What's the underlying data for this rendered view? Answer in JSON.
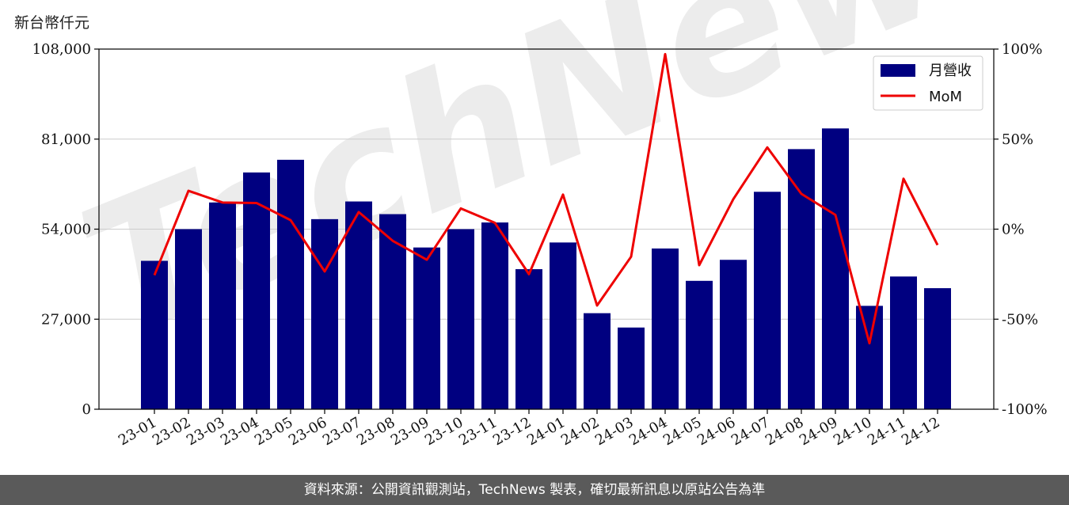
{
  "chart_data": {
    "type": "bar",
    "categories": [
      "23-01",
      "23-02",
      "23-03",
      "23-04",
      "23-05",
      "23-06",
      "23-07",
      "23-08",
      "23-09",
      "23-10",
      "23-11",
      "23-12",
      "24-01",
      "24-02",
      "24-03",
      "24-04",
      "24-05",
      "24-06",
      "24-07",
      "24-08",
      "24-09",
      "24-10",
      "24-11",
      "24-12"
    ],
    "series": [
      {
        "name": "月營收",
        "type": "bar",
        "axis": "left",
        "color": "#000080",
        "values": [
          44500,
          54000,
          62000,
          71000,
          74800,
          57000,
          62300,
          58500,
          48500,
          54000,
          56000,
          42000,
          50000,
          28800,
          24500,
          48200,
          38500,
          44800,
          65200,
          78000,
          84200,
          31000,
          39800,
          36300
        ]
      },
      {
        "name": "MoM",
        "type": "line",
        "axis": "right",
        "color": "#ee0000",
        "values": [
          -25.6,
          21.3,
          14.8,
          14.5,
          5.0,
          -23.5,
          9.5,
          -6.5,
          -17.0,
          11.5,
          3.5,
          -25.0,
          19.2,
          -42.4,
          -15.3,
          97.2,
          -20.0,
          16.6,
          45.4,
          19.6,
          7.9,
          -63.4,
          28.0,
          -8.8
        ]
      }
    ],
    "ylabel": "新台幣仟元",
    "ylim": [
      0,
      108000
    ],
    "yticks": [
      "0",
      "27,000",
      "54,000",
      "81,000",
      "108,000"
    ],
    "y2lim": [
      -100,
      100
    ],
    "y2ticks": [
      "-100%",
      "-50%",
      "0%",
      "50%",
      "100%"
    ],
    "grid": true,
    "legend": "top-right",
    "watermark": "TechNews"
  },
  "footer": {
    "source_note": "資料來源：公開資訊觀測站，TechNews 製表，確切最新訊息以原站公告為準"
  }
}
